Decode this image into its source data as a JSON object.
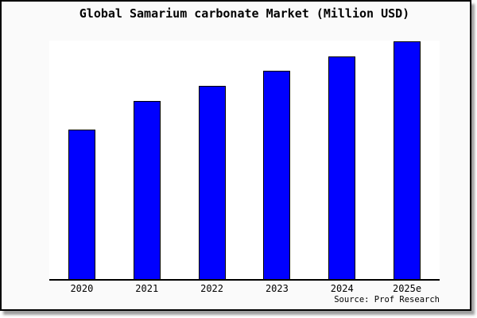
{
  "title": "Global Samarium carbonate Market (Million USD)",
  "source_note": "Source: Prof Research",
  "colors": {
    "bar_fill": "#0000ff",
    "bar_edge": "#000000",
    "figure_background": "#fafafa",
    "plot_background": "#ffffff",
    "frame_border": "#000000",
    "text": "#000000"
  },
  "chart_data": {
    "type": "bar",
    "title": "Global Samarium carbonate Market (Million USD)",
    "categories": [
      "2020",
      "2021",
      "2022",
      "2023",
      "2024",
      "2025e"
    ],
    "values": [
      62.8,
      75.1,
      81.4,
      87.7,
      93.7,
      100
    ],
    "value_scale": "relative units estimated from bar heights (2025e = 100); y-axis has no tick labels",
    "xlabel": "",
    "ylabel": "",
    "ylim": [
      0,
      100.4
    ],
    "grid": false,
    "legend": false,
    "annotation": "Source: Prof Research"
  }
}
